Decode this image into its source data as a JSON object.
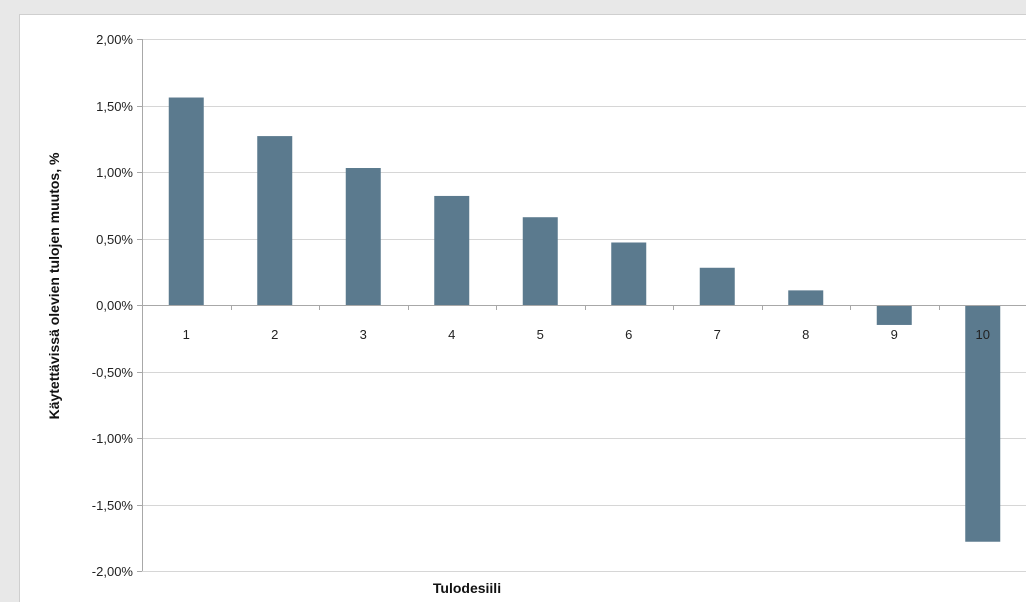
{
  "chart_data": {
    "type": "bar",
    "categories": [
      "1",
      "2",
      "3",
      "4",
      "5",
      "6",
      "7",
      "8",
      "9",
      "10"
    ],
    "values": [
      1.56,
      1.27,
      1.03,
      0.82,
      0.66,
      0.47,
      0.28,
      0.11,
      -0.15,
      -1.78
    ],
    "value_unit": "%",
    "xlabel": "Tulodesiili",
    "ylabel": "Käytettävissä olevien tulojen muutos, %",
    "ylim": [
      -2.0,
      2.0
    ],
    "yticks": [
      2.0,
      1.5,
      1.0,
      0.5,
      0.0,
      -0.5,
      -1.0,
      -1.5,
      -2.0
    ],
    "ytick_labels": [
      "2,00%",
      "1,50%",
      "1,00%",
      "0,50%",
      "0,00%",
      "-0,50%",
      "-1,00%",
      "-1,50%",
      "-2,00%"
    ],
    "grid": true,
    "legend": false,
    "colors": {
      "bar": "#5b7a8e",
      "grid": "#d6d6d6",
      "axis": "#a8a8a8"
    }
  }
}
